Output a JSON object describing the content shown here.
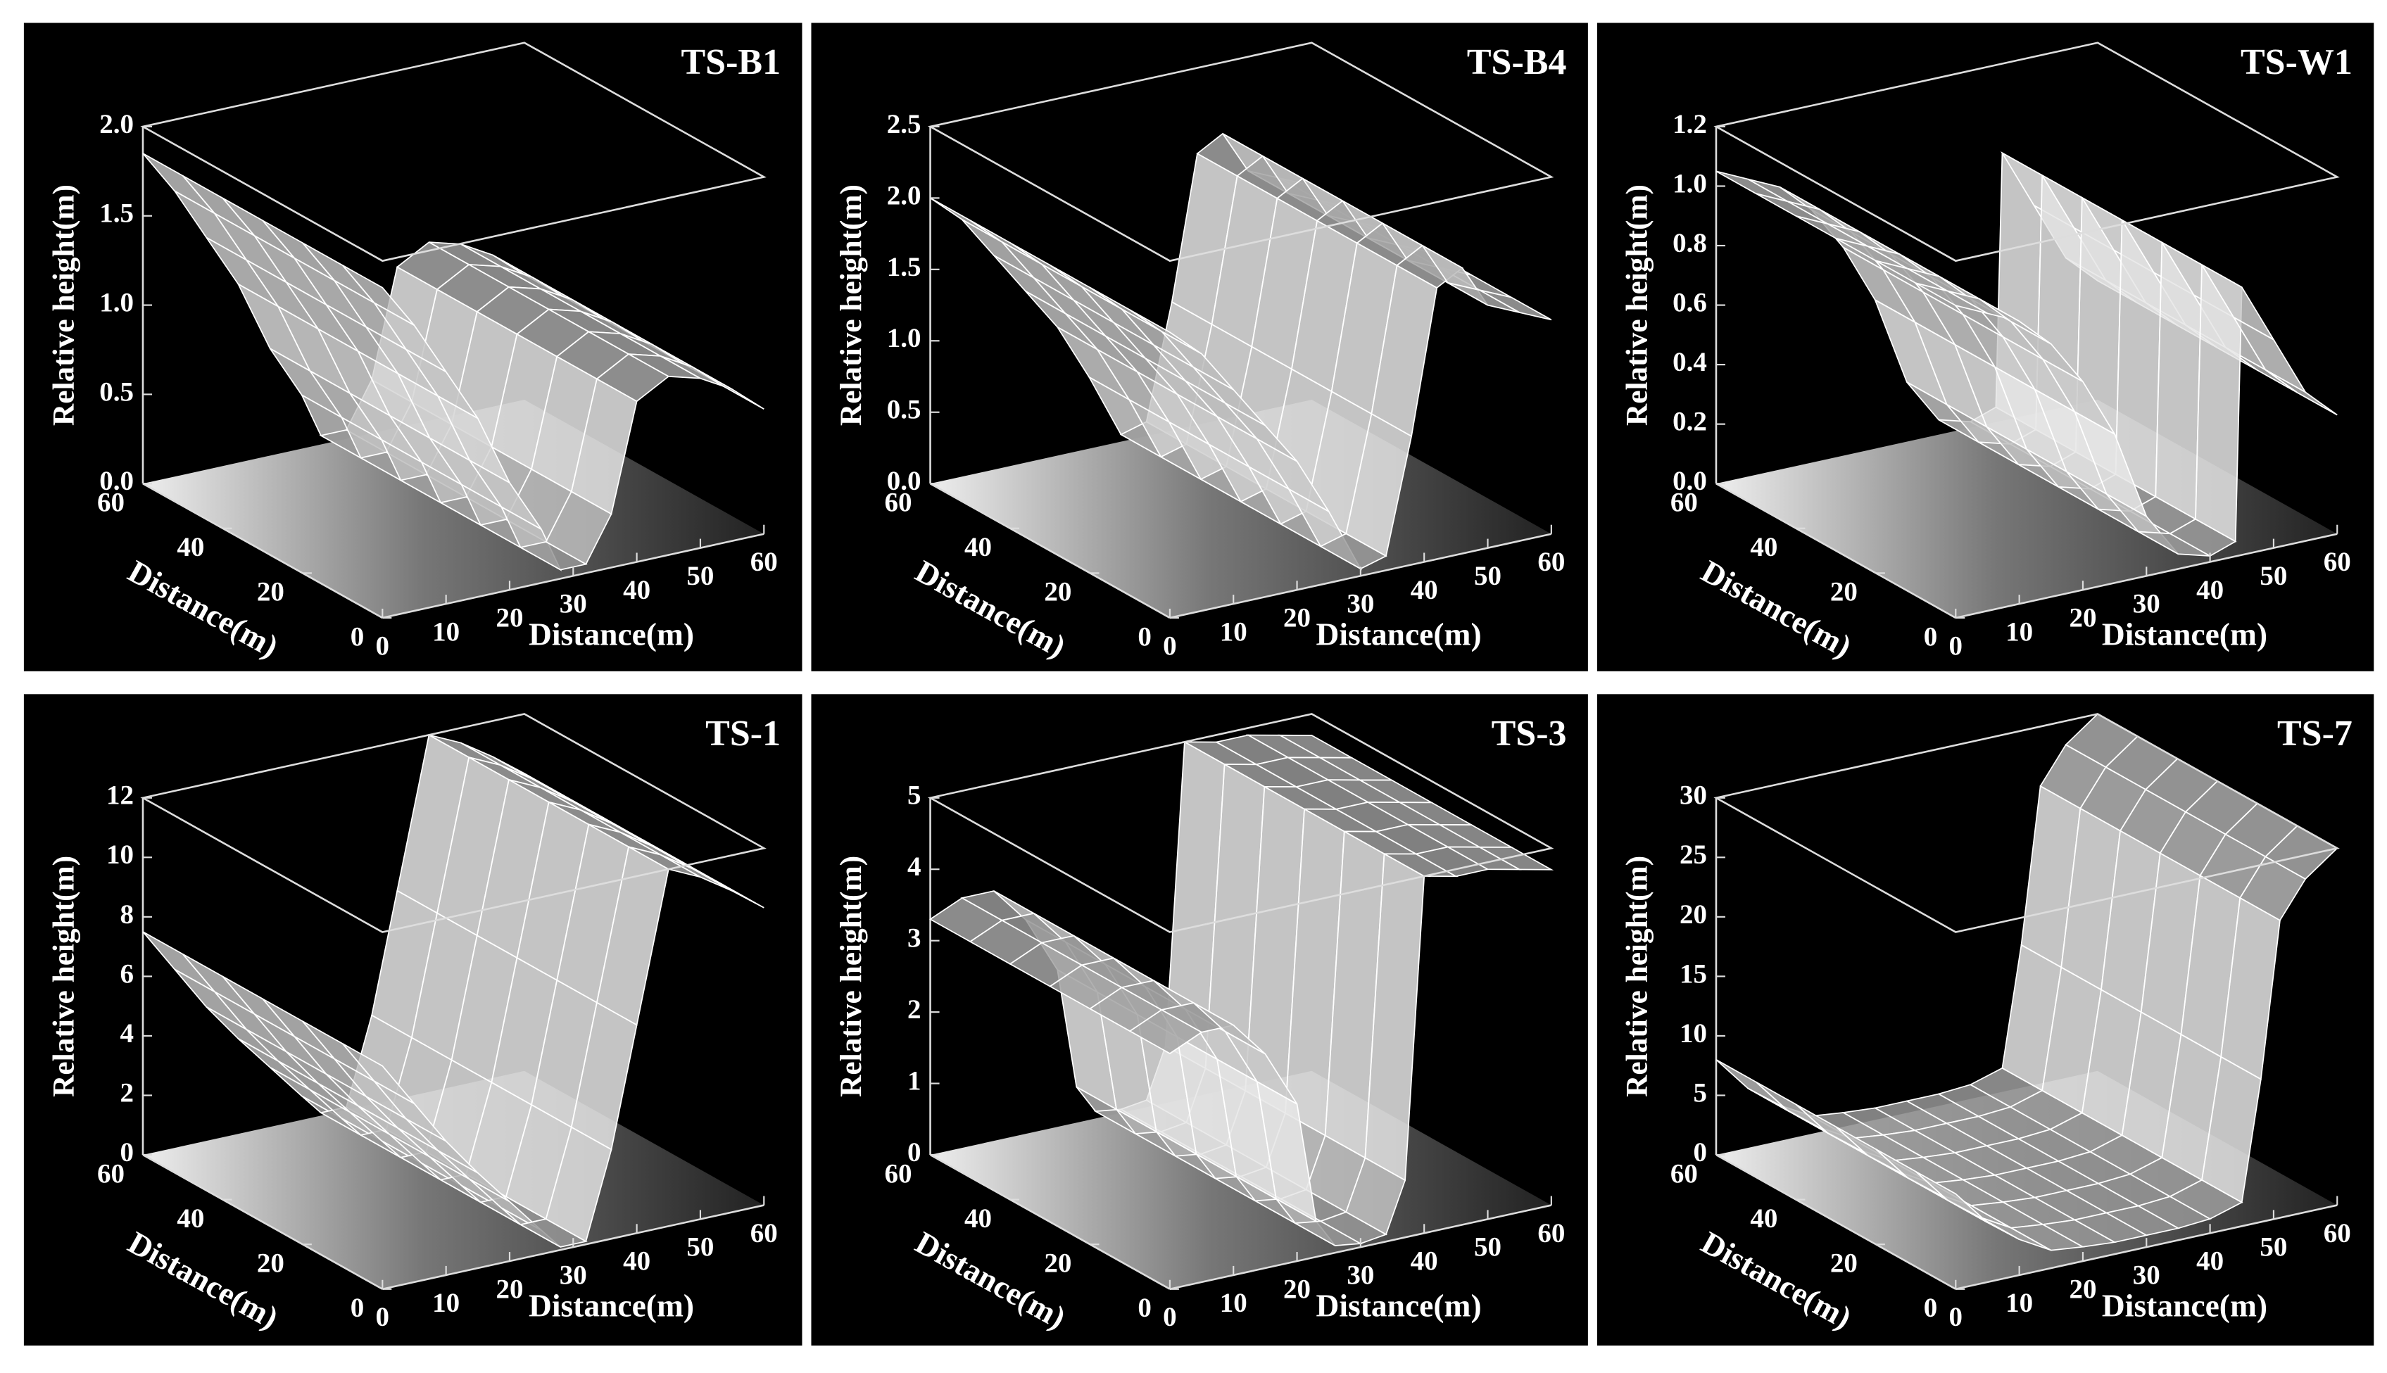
{
  "chart_data": [
    {
      "type": "surface",
      "title": "TS-B1",
      "zlabel": "Relative height(m)",
      "xlabel": "Distance(m)",
      "ylabel": "Distance(m)",
      "xlim": [
        0,
        60
      ],
      "xticks": [
        0,
        10,
        20,
        30,
        40,
        50,
        60
      ],
      "ylim": [
        0,
        60
      ],
      "yticks": [
        0,
        20,
        40,
        60
      ],
      "zlim": [
        0,
        2
      ],
      "zticks": [
        {
          "value": 0,
          "label": "0.0"
        },
        0.5,
        {
          "value": 1,
          "label": "1.0"
        },
        1.5,
        {
          "value": 2,
          "label": "2.0"
        }
      ],
      "x": [
        0,
        5,
        10,
        15,
        20,
        25,
        28,
        32,
        36,
        40,
        45,
        50,
        55,
        60
      ],
      "values": [
        1.85,
        1.6,
        1.3,
        1.0,
        0.6,
        0.3,
        0.05,
        0.05,
        0.3,
        0.9,
        1.0,
        0.95,
        0.85,
        0.7
      ]
    },
    {
      "type": "surface",
      "title": "TS-B4",
      "zlabel": "Relative height(m)",
      "xlabel": "Distance(m)",
      "ylabel": "Distance(m)",
      "xlim": [
        0,
        60
      ],
      "xticks": [
        0,
        10,
        20,
        30,
        40,
        50,
        60
      ],
      "ylim": [
        0,
        60
      ],
      "yticks": [
        0,
        20,
        40,
        60
      ],
      "zlim": [
        0,
        2.5
      ],
      "zticks": [
        {
          "value": 0,
          "label": "0.0"
        },
        0.5,
        {
          "value": 1,
          "label": "1.0"
        },
        1.5,
        {
          "value": 2,
          "label": "2.0"
        },
        2.5
      ],
      "x": [
        0,
        5,
        10,
        15,
        20,
        25,
        30,
        34,
        38,
        42,
        46,
        50,
        55,
        60
      ],
      "values": [
        2.0,
        1.8,
        1.5,
        1.2,
        0.9,
        0.5,
        0.05,
        0.1,
        0.9,
        1.9,
        2.0,
        1.7,
        1.6,
        1.5
      ]
    },
    {
      "type": "surface",
      "title": "TS-W1",
      "zlabel": "Relative height(m)",
      "xlabel": "Distance(m)",
      "ylabel": "Distance(m)",
      "xlim": [
        0,
        60
      ],
      "xticks": [
        0,
        10,
        20,
        30,
        40,
        50,
        60
      ],
      "ylim": [
        0,
        60
      ],
      "yticks": [
        0,
        20,
        40,
        60
      ],
      "zlim": [
        0,
        1.2
      ],
      "zticks": [
        {
          "value": 0,
          "label": "0.0"
        },
        0.2,
        0.4,
        0.6,
        0.8,
        {
          "value": 1,
          "label": "1.0"
        },
        1.2
      ],
      "x": [
        0,
        5,
        10,
        15,
        20,
        25,
        30,
        35,
        40,
        44,
        45,
        50,
        55,
        60
      ],
      "values": [
        1.05,
        1.0,
        0.95,
        0.85,
        0.7,
        0.5,
        0.2,
        0.05,
        0.02,
        0.05,
        0.9,
        0.7,
        0.5,
        0.4
      ]
    },
    {
      "type": "surface",
      "title": "TS-1",
      "zlabel": "Relative height(m)",
      "xlabel": "Distance(m)",
      "ylabel": "Distance(m)",
      "xlim": [
        0,
        60
      ],
      "xticks": [
        0,
        10,
        20,
        30,
        40,
        50,
        60
      ],
      "ylim": [
        0,
        60
      ],
      "yticks": [
        0,
        20,
        40,
        60
      ],
      "zlim": [
        0,
        12
      ],
      "zticks": [
        0,
        2,
        4,
        6,
        8,
        10,
        12
      ],
      "x": [
        0,
        5,
        10,
        15,
        20,
        25,
        28,
        32,
        36,
        40,
        45,
        50,
        55,
        60
      ],
      "values": [
        7.5,
        6.0,
        4.5,
        3.2,
        2.0,
        0.8,
        0.1,
        0.1,
        3.0,
        7.0,
        12.0,
        11.5,
        10.8,
        10.0
      ]
    },
    {
      "type": "surface",
      "title": "TS-3",
      "zlabel": "Relative height(m)",
      "xlabel": "Distance(m)",
      "ylabel": "Distance(m)",
      "xlim": [
        0,
        60
      ],
      "xticks": [
        0,
        10,
        20,
        30,
        40,
        50,
        60
      ],
      "ylim": [
        0,
        60
      ],
      "yticks": [
        0,
        20,
        40,
        60
      ],
      "zlim": [
        0,
        5
      ],
      "zticks": [
        0,
        1,
        2,
        3,
        4,
        5
      ],
      "x": [
        0,
        5,
        10,
        15,
        20,
        23,
        26,
        30,
        34,
        37,
        40,
        45,
        50,
        55,
        60
      ],
      "values": [
        3.3,
        3.5,
        3.5,
        3.0,
        2.2,
        0.5,
        0.1,
        0.05,
        0.1,
        0.8,
        5.0,
        4.9,
        4.9,
        4.8,
        4.7
      ]
    },
    {
      "type": "surface",
      "title": "TS-7",
      "zlabel": "Relative height(m)",
      "xlabel": "Distance(m)",
      "ylabel": "Distance(m)",
      "xlim": [
        0,
        60
      ],
      "xticks": [
        0,
        10,
        20,
        30,
        40,
        50,
        60
      ],
      "ylim": [
        0,
        60
      ],
      "yticks": [
        0,
        20,
        40,
        60
      ],
      "zlim": [
        0,
        30
      ],
      "zticks": [
        0,
        5,
        10,
        15,
        20,
        25,
        30
      ],
      "x": [
        0,
        5,
        10,
        15,
        20,
        25,
        30,
        35,
        40,
        45,
        48,
        51,
        55,
        60
      ],
      "values": [
        8.0,
        5.0,
        3.0,
        1.5,
        1.2,
        1.0,
        1.0,
        1.0,
        1.2,
        2.0,
        12.0,
        25.0,
        28.0,
        30.0
      ]
    }
  ]
}
